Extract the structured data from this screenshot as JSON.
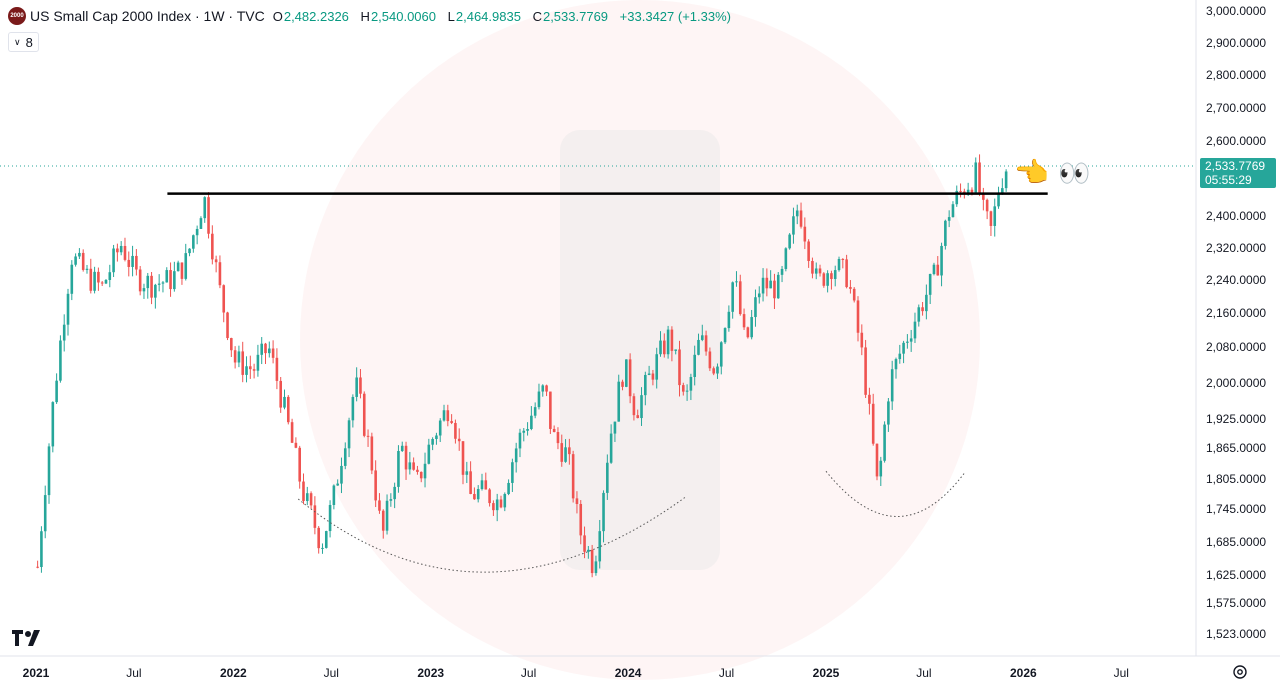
{
  "header": {
    "logo_text": "2000",
    "symbol": "US Small Cap 2000 Index · 1W · TVC",
    "open_label": "O",
    "open": "2,482.2326",
    "high_label": "H",
    "high": "2,540.0060",
    "low_label": "L",
    "low": "2,464.9835",
    "close_label": "C",
    "close": "2,533.7769",
    "change": "+33.3427 (+1.33%)"
  },
  "indicator_badge": "8",
  "last_price": {
    "value": "2,533.7769",
    "countdown": "05:55:29"
  },
  "annotations": {
    "pointer_icon": "backhand-index-pointing-left",
    "pointer": "👈",
    "eyes_icon": "eyes",
    "eyes": "👀"
  },
  "colors": {
    "up": "#26a69a",
    "down": "#ef5350",
    "watermark": "#fdecec"
  },
  "chart_data": {
    "type": "candlestick",
    "title": "US Small Cap 2000 Index · 1W · TVC",
    "y_tick_labels": [
      "3,000.0000",
      "2,900.0000",
      "2,800.0000",
      "2,700.0000",
      "2,600.0000",
      "2,400.0000",
      "2,320.0000",
      "2,240.0000",
      "2,160.0000",
      "2,080.0000",
      "2,000.0000",
      "1,925.0000",
      "1,865.0000",
      "1,805.0000",
      "1,745.0000",
      "1,685.0000",
      "1,625.0000",
      "1,575.0000",
      "1,523.0000"
    ],
    "x_tick_labels": [
      "2021",
      "Jul",
      "2022",
      "Jul",
      "2023",
      "Jul",
      "2024",
      "Jul",
      "2025",
      "Jul",
      "2026",
      "Jul"
    ],
    "ylim": [
      1500,
      3000
    ],
    "resistance_level": 2460,
    "close_path": [
      {
        "t": "2021-01-04",
        "close": 1640
      },
      {
        "t": "2021-02-01",
        "close": 1950
      },
      {
        "t": "2021-03-08",
        "close": 2300
      },
      {
        "t": "2021-04-05",
        "close": 2250
      },
      {
        "t": "2021-05-03",
        "close": 2220
      },
      {
        "t": "2021-06-07",
        "close": 2330
      },
      {
        "t": "2021-07-05",
        "close": 2250
      },
      {
        "t": "2021-08-02",
        "close": 2230
      },
      {
        "t": "2021-09-06",
        "close": 2240
      },
      {
        "t": "2021-10-04",
        "close": 2280
      },
      {
        "t": "2021-11-08",
        "close": 2450
      },
      {
        "t": "2021-12-06",
        "close": 2220
      },
      {
        "t": "2022-01-03",
        "close": 2050
      },
      {
        "t": "2022-02-07",
        "close": 2030
      },
      {
        "t": "2022-03-07",
        "close": 2080
      },
      {
        "t": "2022-04-04",
        "close": 1950
      },
      {
        "t": "2022-05-09",
        "close": 1780
      },
      {
        "t": "2022-06-13",
        "close": 1680
      },
      {
        "t": "2022-07-04",
        "close": 1760
      },
      {
        "t": "2022-08-15",
        "close": 2000
      },
      {
        "t": "2022-09-12",
        "close": 1850
      },
      {
        "t": "2022-10-03",
        "close": 1690
      },
      {
        "t": "2022-11-07",
        "close": 1870
      },
      {
        "t": "2022-12-05",
        "close": 1790
      },
      {
        "t": "2023-01-02",
        "close": 1880
      },
      {
        "t": "2023-02-06",
        "close": 1960
      },
      {
        "t": "2023-03-13",
        "close": 1770
      },
      {
        "t": "2023-04-03",
        "close": 1780
      },
      {
        "t": "2023-05-08",
        "close": 1760
      },
      {
        "t": "2023-06-12",
        "close": 1880
      },
      {
        "t": "2023-07-31",
        "close": 1990
      },
      {
        "t": "2023-08-14",
        "close": 1890
      },
      {
        "t": "2023-09-11",
        "close": 1850
      },
      {
        "t": "2023-10-02",
        "close": 1710
      },
      {
        "t": "2023-10-30",
        "close": 1640
      },
      {
        "t": "2023-11-27",
        "close": 1880
      },
      {
        "t": "2023-12-25",
        "close": 2040
      },
      {
        "t": "2024-01-15",
        "close": 1940
      },
      {
        "t": "2024-02-12",
        "close": 2020
      },
      {
        "t": "2024-03-18",
        "close": 2110
      },
      {
        "t": "2024-04-15",
        "close": 1950
      },
      {
        "t": "2024-05-13",
        "close": 2100
      },
      {
        "t": "2024-06-10",
        "close": 2030
      },
      {
        "t": "2024-07-15",
        "close": 2250
      },
      {
        "t": "2024-08-05",
        "close": 2080
      },
      {
        "t": "2024-09-02",
        "close": 2230
      },
      {
        "t": "2024-10-07",
        "close": 2220
      },
      {
        "t": "2024-11-11",
        "close": 2430
      },
      {
        "t": "2024-12-16",
        "close": 2230
      },
      {
        "t": "2025-01-13",
        "close": 2280
      },
      {
        "t": "2025-02-10",
        "close": 2250
      },
      {
        "t": "2025-03-10",
        "close": 2050
      },
      {
        "t": "2025-04-07",
        "close": 1780
      },
      {
        "t": "2025-04-28",
        "close": 2000
      },
      {
        "t": "2025-05-19",
        "close": 2070
      },
      {
        "t": "2025-06-23",
        "close": 2170
      },
      {
        "t": "2025-07-21",
        "close": 2250
      },
      {
        "t": "2025-08-18",
        "close": 2420
      },
      {
        "t": "2025-09-15",
        "close": 2480
      },
      {
        "t": "2025-10-06",
        "close": 2510
      },
      {
        "t": "2025-10-20",
        "close": 2400
      },
      {
        "t": "2025-11-03",
        "close": 2360
      },
      {
        "t": "2025-11-17",
        "close": 2482
      },
      {
        "t": "2025-12-01",
        "close": 2533.78
      }
    ],
    "grid": false,
    "legend": "none"
  }
}
